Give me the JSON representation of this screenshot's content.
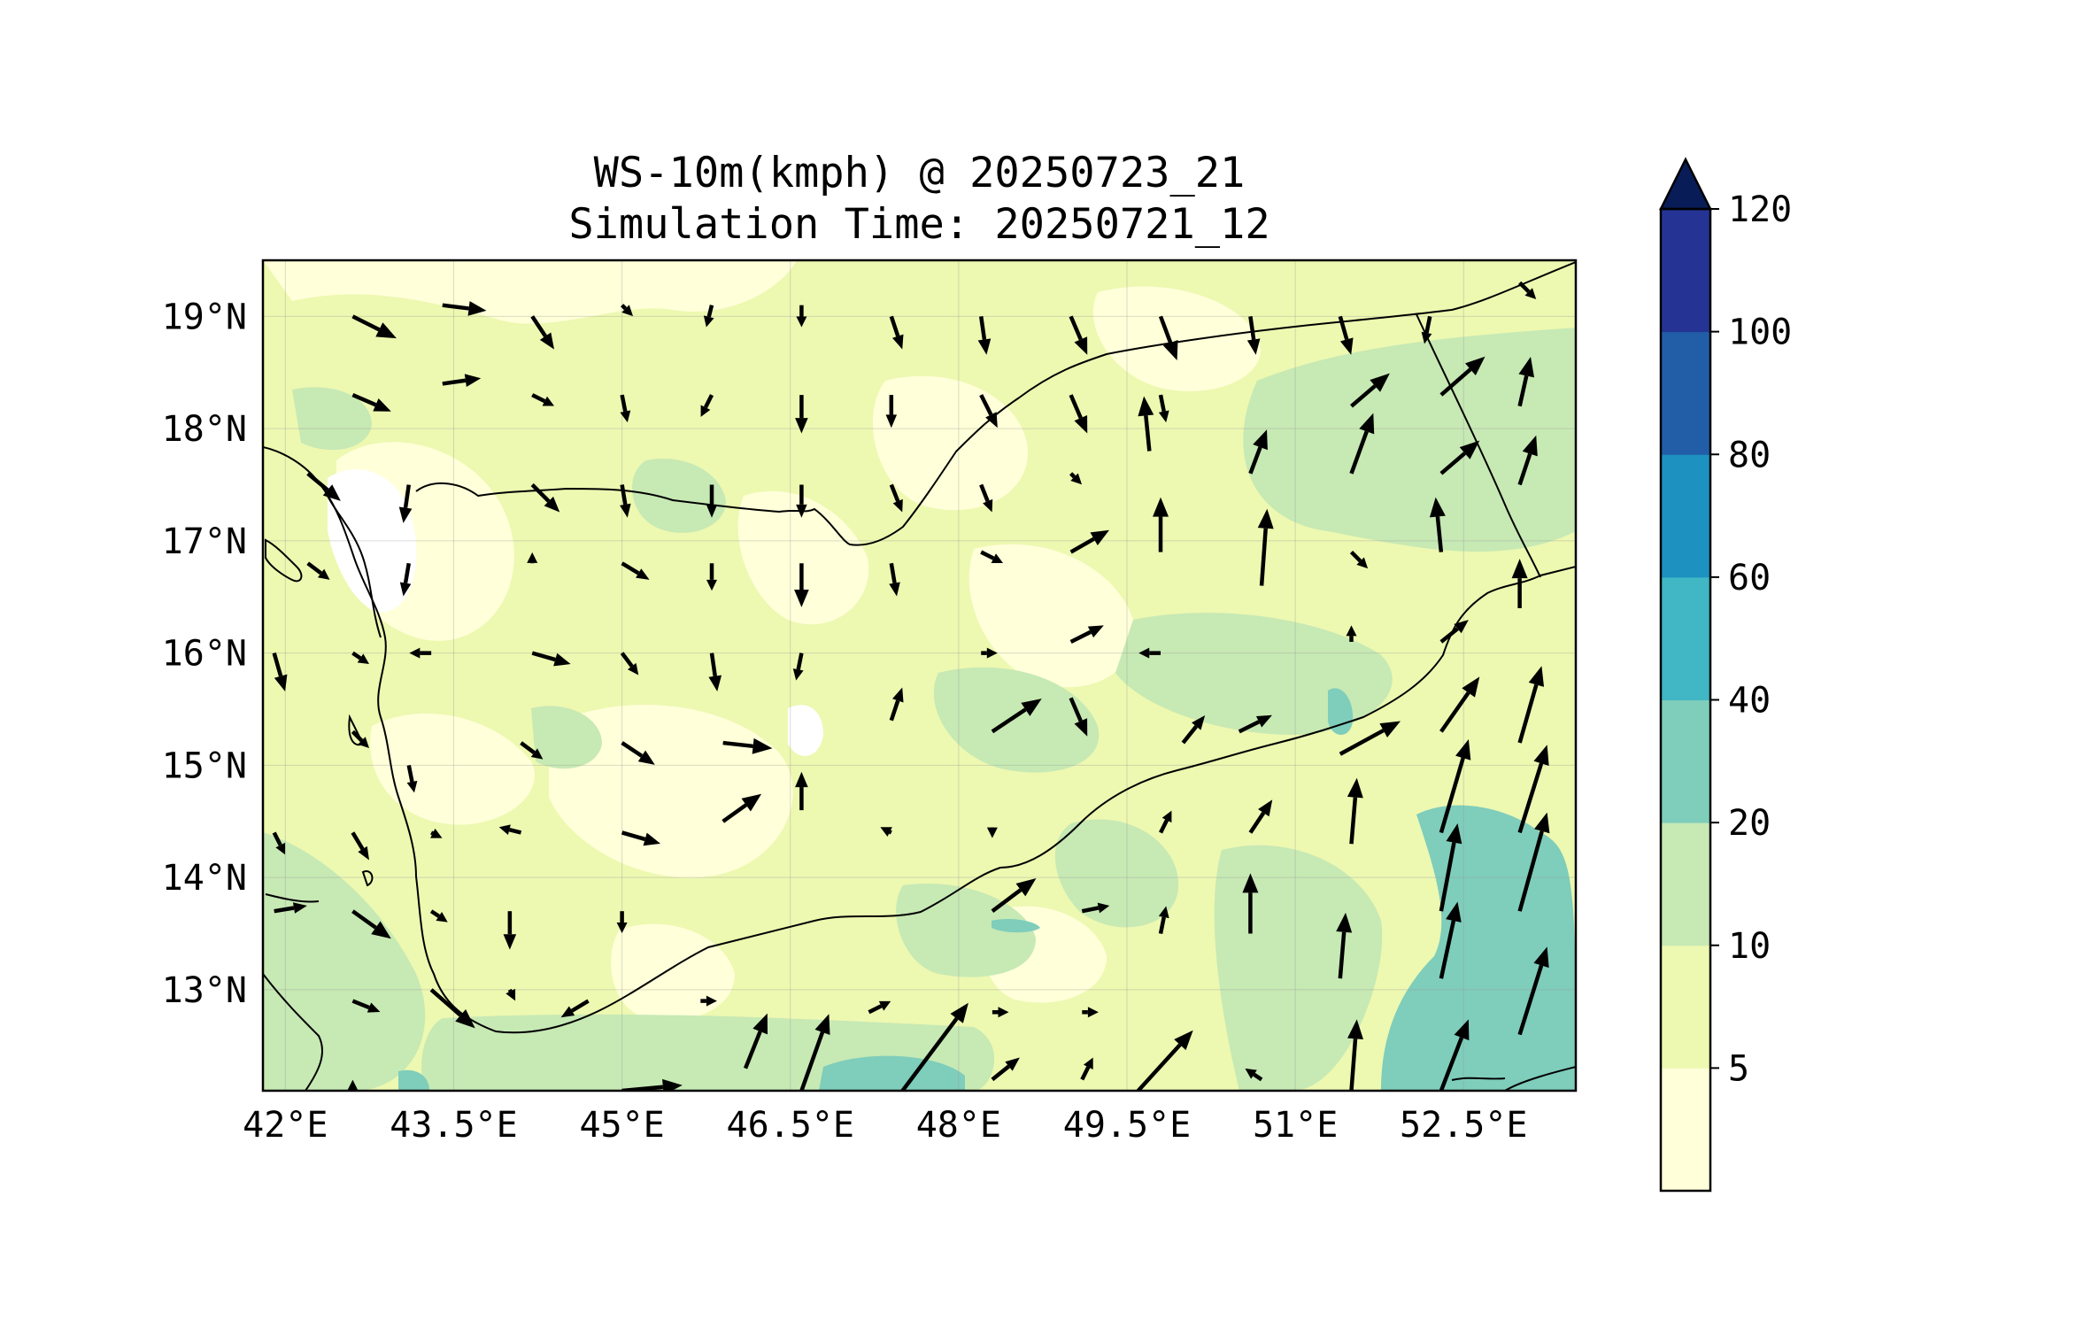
{
  "title": "WS-10m(kmph) @ 20250723_21",
  "subtitle": "Simulation Time: 20250721_12",
  "map": {
    "lon_range": [
      41.8,
      53.5
    ],
    "lat_range": [
      12.1,
      19.5
    ],
    "lon_ticks": [
      "42°E",
      "43.5°E",
      "45°E",
      "46.5°E",
      "48°E",
      "49.5°E",
      "51°E",
      "52.5°E"
    ],
    "lat_ticks": [
      "19°N",
      "18°N",
      "17°N",
      "16°N",
      "15°N",
      "14°N",
      "13°N"
    ],
    "grid": true
  },
  "colorbar": {
    "ticks": [
      "120",
      "100",
      "80",
      "60",
      "40",
      "20",
      "10",
      "5"
    ],
    "levels": [
      5,
      10,
      20,
      40,
      60,
      80,
      100,
      120
    ],
    "colors": [
      "#ffffd9",
      "#edf8b1",
      "#c7e9b4",
      "#7fcdbb",
      "#41b6c4",
      "#1d91c0",
      "#225ea8",
      "#253494"
    ],
    "extend_color": "#081d58",
    "extend": "max"
  },
  "chart_data": {
    "type": "map",
    "field": "WS-10m",
    "units": "kmph",
    "valid_time": "20250723_21",
    "simulation_time": "20250721_12",
    "vectors": [
      {
        "lon": 42.6,
        "lat": 19.0,
        "u": 8,
        "v": -4
      },
      {
        "lon": 43.4,
        "lat": 19.1,
        "u": 8,
        "v": -1
      },
      {
        "lon": 44.2,
        "lat": 19.0,
        "u": 4,
        "v": -6
      },
      {
        "lon": 45.0,
        "lat": 19.1,
        "u": 2,
        "v": -2
      },
      {
        "lon": 45.8,
        "lat": 19.1,
        "u": -1,
        "v": -4
      },
      {
        "lon": 46.6,
        "lat": 19.1,
        "u": 0,
        "v": -4
      },
      {
        "lon": 47.4,
        "lat": 19.0,
        "u": 2,
        "v": -6
      },
      {
        "lon": 48.2,
        "lat": 19.0,
        "u": 1,
        "v": -7
      },
      {
        "lon": 49.0,
        "lat": 19.0,
        "u": 3,
        "v": -7
      },
      {
        "lon": 49.8,
        "lat": 19.0,
        "u": 3,
        "v": -8
      },
      {
        "lon": 50.6,
        "lat": 19.0,
        "u": 1,
        "v": -7
      },
      {
        "lon": 51.4,
        "lat": 19.0,
        "u": 2,
        "v": -7
      },
      {
        "lon": 52.2,
        "lat": 19.0,
        "u": -1,
        "v": -5
      },
      {
        "lon": 53.0,
        "lat": 19.3,
        "u": 3,
        "v": -3
      },
      {
        "lon": 42.6,
        "lat": 18.3,
        "u": 7,
        "v": -3
      },
      {
        "lon": 43.4,
        "lat": 18.4,
        "u": 7,
        "v": 1
      },
      {
        "lon": 44.2,
        "lat": 18.3,
        "u": 4,
        "v": -2
      },
      {
        "lon": 45.0,
        "lat": 18.3,
        "u": 1,
        "v": -5
      },
      {
        "lon": 45.8,
        "lat": 18.3,
        "u": -2,
        "v": -4
      },
      {
        "lon": 46.6,
        "lat": 18.3,
        "u": 0,
        "v": -7
      },
      {
        "lon": 47.4,
        "lat": 18.3,
        "u": 0,
        "v": -6
      },
      {
        "lon": 48.2,
        "lat": 18.3,
        "u": 3,
        "v": -6
      },
      {
        "lon": 49.0,
        "lat": 18.3,
        "u": 3,
        "v": -7
      },
      {
        "lon": 49.8,
        "lat": 18.3,
        "u": 1,
        "v": -5
      },
      {
        "lon": 51.5,
        "lat": 18.2,
        "u": 7,
        "v": 6
      },
      {
        "lon": 52.3,
        "lat": 18.3,
        "u": 8,
        "v": 7
      },
      {
        "lon": 53.0,
        "lat": 18.2,
        "u": 2,
        "v": 9
      },
      {
        "lon": 42.2,
        "lat": 17.6,
        "u": 6,
        "v": -5
      },
      {
        "lon": 43.1,
        "lat": 17.5,
        "u": -1,
        "v": -7
      },
      {
        "lon": 44.2,
        "lat": 17.5,
        "u": 5,
        "v": -5
      },
      {
        "lon": 45.0,
        "lat": 17.5,
        "u": 1,
        "v": -6
      },
      {
        "lon": 45.8,
        "lat": 17.5,
        "u": 0,
        "v": -6
      },
      {
        "lon": 46.6,
        "lat": 17.5,
        "u": 0,
        "v": -6
      },
      {
        "lon": 47.4,
        "lat": 17.5,
        "u": 2,
        "v": -5
      },
      {
        "lon": 48.2,
        "lat": 17.5,
        "u": 2,
        "v": -5
      },
      {
        "lon": 49.0,
        "lat": 17.6,
        "u": 2,
        "v": -2
      },
      {
        "lon": 49.7,
        "lat": 17.8,
        "u": -1,
        "v": 10
      },
      {
        "lon": 50.6,
        "lat": 17.6,
        "u": 3,
        "v": 8
      },
      {
        "lon": 51.5,
        "lat": 17.6,
        "u": 4,
        "v": 11
      },
      {
        "lon": 52.3,
        "lat": 17.6,
        "u": 7,
        "v": 6
      },
      {
        "lon": 53.0,
        "lat": 17.5,
        "u": 3,
        "v": 9
      },
      {
        "lon": 42.2,
        "lat": 16.8,
        "u": 4,
        "v": -3
      },
      {
        "lon": 43.1,
        "lat": 16.8,
        "u": -1,
        "v": -6
      },
      {
        "lon": 44.2,
        "lat": 16.8,
        "u": 0,
        "v": 2
      },
      {
        "lon": 45.0,
        "lat": 16.8,
        "u": 5,
        "v": -3
      },
      {
        "lon": 45.8,
        "lat": 16.8,
        "u": 0,
        "v": -5
      },
      {
        "lon": 46.6,
        "lat": 16.8,
        "u": 0,
        "v": -8
      },
      {
        "lon": 47.4,
        "lat": 16.8,
        "u": 1,
        "v": -6
      },
      {
        "lon": 48.2,
        "lat": 16.9,
        "u": 4,
        "v": -2
      },
      {
        "lon": 49.0,
        "lat": 16.9,
        "u": 7,
        "v": 4
      },
      {
        "lon": 49.8,
        "lat": 16.9,
        "u": 0,
        "v": 10
      },
      {
        "lon": 50.7,
        "lat": 16.6,
        "u": 1,
        "v": 14
      },
      {
        "lon": 51.5,
        "lat": 16.9,
        "u": 3,
        "v": -3
      },
      {
        "lon": 52.3,
        "lat": 16.9,
        "u": -1,
        "v": 10
      },
      {
        "lon": 53.0,
        "lat": 16.4,
        "u": 0,
        "v": 9
      },
      {
        "lon": 41.9,
        "lat": 16.0,
        "u": 2,
        "v": -7
      },
      {
        "lon": 42.6,
        "lat": 16.0,
        "u": 3,
        "v": -2
      },
      {
        "lon": 43.3,
        "lat": 16.0,
        "u": -4,
        "v": 0
      },
      {
        "lon": 44.2,
        "lat": 16.0,
        "u": 7,
        "v": -2
      },
      {
        "lon": 45.0,
        "lat": 16.0,
        "u": 3,
        "v": -4
      },
      {
        "lon": 45.8,
        "lat": 16.0,
        "u": 1,
        "v": -7
      },
      {
        "lon": 46.6,
        "lat": 16.0,
        "u": -1,
        "v": -5
      },
      {
        "lon": 47.4,
        "lat": 15.4,
        "u": 2,
        "v": 6
      },
      {
        "lon": 48.2,
        "lat": 16.0,
        "u": 3,
        "v": 0
      },
      {
        "lon": 48.3,
        "lat": 15.3,
        "u": 9,
        "v": 6
      },
      {
        "lon": 49.0,
        "lat": 16.1,
        "u": 6,
        "v": 3
      },
      {
        "lon": 49.8,
        "lat": 16.0,
        "u": -4,
        "v": 0
      },
      {
        "lon": 50.5,
        "lat": 15.3,
        "u": 6,
        "v": 3
      },
      {
        "lon": 51.5,
        "lat": 16.1,
        "u": 0,
        "v": 3
      },
      {
        "lon": 52.3,
        "lat": 16.1,
        "u": 5,
        "v": 4
      },
      {
        "lon": 52.3,
        "lat": 15.3,
        "u": 7,
        "v": 10
      },
      {
        "lon": 53.0,
        "lat": 15.2,
        "u": 4,
        "v": 14
      },
      {
        "lon": 42.6,
        "lat": 15.3,
        "u": 3,
        "v": -3
      },
      {
        "lon": 43.1,
        "lat": 15.0,
        "u": 1,
        "v": -5
      },
      {
        "lon": 44.1,
        "lat": 15.2,
        "u": 4,
        "v": -3
      },
      {
        "lon": 45.0,
        "lat": 15.2,
        "u": 6,
        "v": -4
      },
      {
        "lon": 45.9,
        "lat": 15.2,
        "u": 9,
        "v": -1
      },
      {
        "lon": 46.6,
        "lat": 14.6,
        "u": 0,
        "v": 7
      },
      {
        "lon": 49.0,
        "lat": 15.6,
        "u": 3,
        "v": -7
      },
      {
        "lon": 50.0,
        "lat": 15.2,
        "u": 4,
        "v": 5
      },
      {
        "lon": 51.4,
        "lat": 15.1,
        "u": 11,
        "v": 6
      },
      {
        "lon": 52.3,
        "lat": 14.4,
        "u": 5,
        "v": 17
      },
      {
        "lon": 53.0,
        "lat": 14.4,
        "u": 5,
        "v": 16
      },
      {
        "lon": 41.9,
        "lat": 14.4,
        "u": 2,
        "v": -4
      },
      {
        "lon": 42.6,
        "lat": 14.4,
        "u": 3,
        "v": -5
      },
      {
        "lon": 43.3,
        "lat": 14.4,
        "u": 2,
        "v": -1
      },
      {
        "lon": 44.1,
        "lat": 14.4,
        "u": -4,
        "v": 1
      },
      {
        "lon": 45.0,
        "lat": 14.4,
        "u": 7,
        "v": -2
      },
      {
        "lon": 45.9,
        "lat": 14.5,
        "u": 7,
        "v": 5
      },
      {
        "lon": 47.4,
        "lat": 14.4,
        "u": -2,
        "v": 1
      },
      {
        "lon": 48.3,
        "lat": 14.4,
        "u": 0,
        "v": -1
      },
      {
        "lon": 48.3,
        "lat": 13.7,
        "u": 8,
        "v": 6
      },
      {
        "lon": 49.1,
        "lat": 13.7,
        "u": 5,
        "v": 1
      },
      {
        "lon": 49.8,
        "lat": 14.4,
        "u": 2,
        "v": 4
      },
      {
        "lon": 50.6,
        "lat": 14.4,
        "u": 4,
        "v": 6
      },
      {
        "lon": 51.5,
        "lat": 14.3,
        "u": 1,
        "v": 12
      },
      {
        "lon": 52.3,
        "lat": 13.7,
        "u": 3,
        "v": 16
      },
      {
        "lon": 53.0,
        "lat": 13.7,
        "u": 5,
        "v": 18
      },
      {
        "lon": 41.9,
        "lat": 13.7,
        "u": 6,
        "v": 1
      },
      {
        "lon": 42.6,
        "lat": 13.7,
        "u": 7,
        "v": -5
      },
      {
        "lon": 43.3,
        "lat": 13.7,
        "u": 3,
        "v": -2
      },
      {
        "lon": 44.0,
        "lat": 13.7,
        "u": 0,
        "v": -7
      },
      {
        "lon": 45.0,
        "lat": 13.7,
        "u": 0,
        "v": -4
      },
      {
        "lon": 49.8,
        "lat": 13.5,
        "u": 1,
        "v": 5
      },
      {
        "lon": 50.6,
        "lat": 13.5,
        "u": 0,
        "v": 11
      },
      {
        "lon": 51.4,
        "lat": 13.1,
        "u": 1,
        "v": 12
      },
      {
        "lon": 52.3,
        "lat": 13.1,
        "u": 3,
        "v": 14
      },
      {
        "lon": 42.6,
        "lat": 12.9,
        "u": 5,
        "v": -2
      },
      {
        "lon": 43.3,
        "lat": 13.0,
        "u": 8,
        "v": -7
      },
      {
        "lon": 44.0,
        "lat": 13.0,
        "u": 1,
        "v": -2
      },
      {
        "lon": 44.7,
        "lat": 12.9,
        "u": -5,
        "v": -3
      },
      {
        "lon": 45.7,
        "lat": 12.9,
        "u": 3,
        "v": 0
      },
      {
        "lon": 46.1,
        "lat": 12.3,
        "u": 4,
        "v": 10
      },
      {
        "lon": 46.6,
        "lat": 12.1,
        "u": 5,
        "v": 14
      },
      {
        "lon": 47.2,
        "lat": 12.8,
        "u": 4,
        "v": 2
      },
      {
        "lon": 47.5,
        "lat": 12.1,
        "u": 12,
        "v": 16
      },
      {
        "lon": 48.3,
        "lat": 12.8,
        "u": 3,
        "v": 0
      },
      {
        "lon": 48.3,
        "lat": 12.2,
        "u": 5,
        "v": 4
      },
      {
        "lon": 49.1,
        "lat": 12.8,
        "u": 3,
        "v": 0
      },
      {
        "lon": 49.1,
        "lat": 12.2,
        "u": 2,
        "v": 4
      },
      {
        "lon": 49.6,
        "lat": 12.1,
        "u": 10,
        "v": 11
      },
      {
        "lon": 50.7,
        "lat": 12.2,
        "u": -3,
        "v": 2
      },
      {
        "lon": 51.5,
        "lat": 12.1,
        "u": 1,
        "v": 13
      },
      {
        "lon": 52.3,
        "lat": 12.1,
        "u": 5,
        "v": 13
      },
      {
        "lon": 53.0,
        "lat": 12.6,
        "u": 5,
        "v": 16
      },
      {
        "lon": 45.0,
        "lat": 12.1,
        "u": 11,
        "v": 1
      },
      {
        "lon": 42.6,
        "lat": 12.1,
        "u": 0,
        "v": 2
      }
    ]
  }
}
